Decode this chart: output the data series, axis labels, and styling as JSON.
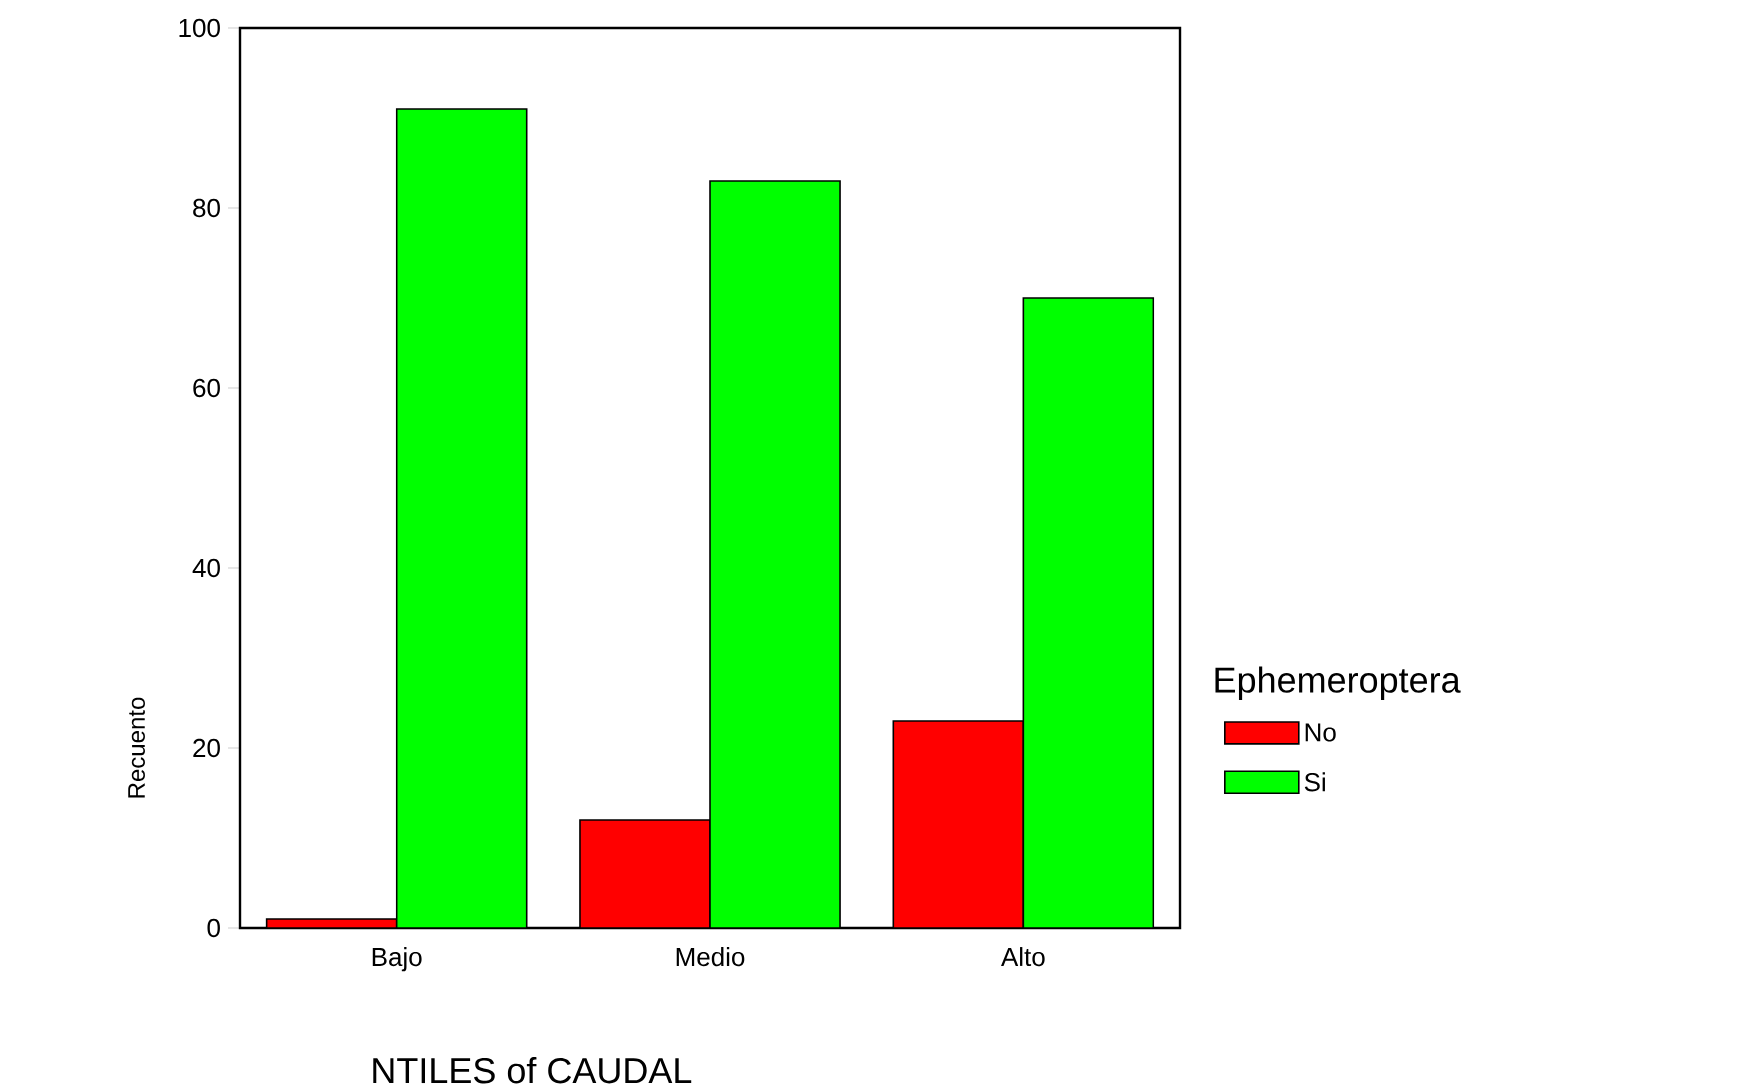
{
  "chart_data": {
    "type": "bar",
    "xlabel": "NTILES of CAUDAL",
    "ylabel": "Recuento",
    "legend_title": "Ephemeroptera",
    "legend": "right",
    "categories": [
      "Bajo",
      "Medio",
      "Alto"
    ],
    "series": [
      {
        "name": "No",
        "color": "#ff0000",
        "values": [
          1,
          12,
          23
        ]
      },
      {
        "name": "Si",
        "color": "#00ff00",
        "values": [
          91,
          83,
          70
        ]
      }
    ],
    "ylim": [
      0,
      100
    ],
    "yticks": [
      0,
      20,
      40,
      60,
      80,
      100
    ],
    "grid": false
  }
}
